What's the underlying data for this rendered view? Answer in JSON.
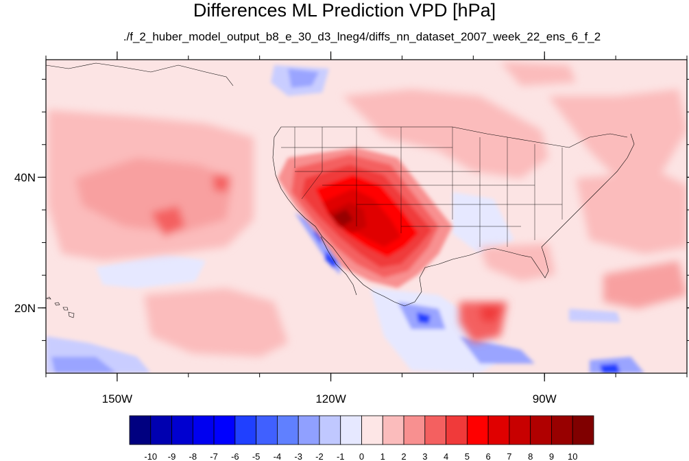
{
  "title": "Differences ML Prediction VPD [hPa]",
  "subtitle": "./f_2_huber_model_output_b8_e_30_d3_lneg4/diffs_nn_dataset_2007_week_22_ens_6_f_2",
  "map": {
    "projection": "cylindrical-equidistant",
    "lon_range": [
      -160,
      -70
    ],
    "lat_range": [
      10,
      58
    ],
    "x_ticks": [
      {
        "value": -150,
        "label": "150W"
      },
      {
        "value": -120,
        "label": "120W"
      },
      {
        "value": -90,
        "label": "90W"
      }
    ],
    "y_ticks": [
      {
        "value": 40,
        "label": "40N"
      },
      {
        "value": 20,
        "label": "20N"
      }
    ],
    "background_color": "#fce4e4"
  },
  "colorbar": {
    "colors": [
      "#000080",
      "#0000b0",
      "#0000d0",
      "#0000f0",
      "#0000ff",
      "#2040ff",
      "#4060ff",
      "#6080ff",
      "#90a0ff",
      "#c0c8ff",
      "#e6e8ff",
      "#fde6e6",
      "#fbbcbc",
      "#f89090",
      "#f46060",
      "#f03a3a",
      "#ff0000",
      "#e00000",
      "#c80000",
      "#b00000",
      "#980000",
      "#800000"
    ],
    "labels": [
      "-10",
      "-9",
      "-8",
      "-7",
      "-6",
      "-5",
      "-4",
      "-3",
      "-2",
      "-1",
      "0",
      "1",
      "2",
      "3",
      "4",
      "5",
      "6",
      "7",
      "8",
      "9",
      "10"
    ]
  }
}
